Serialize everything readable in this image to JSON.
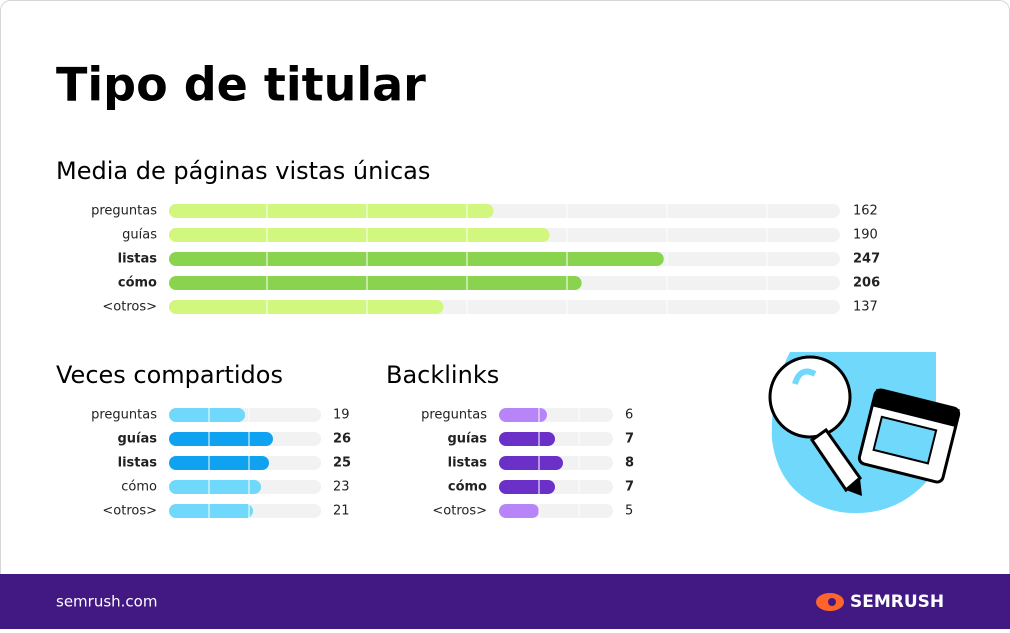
{
  "title": "Tipo de titular",
  "chart_data": [
    {
      "type": "bar",
      "orientation": "horizontal",
      "title": "Media de páginas vistas únicas",
      "categories": [
        "preguntas",
        "guías",
        "listas",
        "cómo",
        "<otros>"
      ],
      "values": [
        162,
        190,
        247,
        206,
        137
      ],
      "colors": [
        "#d1f77e",
        "#d1f77e",
        "#8ad34f",
        "#8ad34f",
        "#d1f77e"
      ],
      "highlight": [
        false,
        false,
        true,
        true,
        false
      ],
      "xlim": [
        0,
        335
      ]
    },
    {
      "type": "bar",
      "orientation": "horizontal",
      "title": "Veces compartidos",
      "categories": [
        "preguntas",
        "guías",
        "listas",
        "cómo",
        "<otros>"
      ],
      "values": [
        19,
        26,
        25,
        23,
        21
      ],
      "colors": [
        "#6fd8fb",
        "#0ea2f0",
        "#0ea2f0",
        "#6fd8fb",
        "#6fd8fb"
      ],
      "highlight": [
        false,
        true,
        true,
        false,
        false
      ],
      "xlim": [
        0,
        38
      ]
    },
    {
      "type": "bar",
      "orientation": "horizontal",
      "title": "Backlinks",
      "categories": [
        "preguntas",
        "guías",
        "listas",
        "cómo",
        "<otros>"
      ],
      "values": [
        6,
        7,
        8,
        7,
        5
      ],
      "colors": [
        "#b785f7",
        "#6a30c8",
        "#6a30c8",
        "#6a30c8",
        "#b785f7"
      ],
      "highlight": [
        false,
        true,
        true,
        true,
        false
      ],
      "xlim": [
        0,
        14.25
      ]
    }
  ],
  "footer": {
    "url": "semrush.com",
    "brand": "SEMRUSH"
  }
}
